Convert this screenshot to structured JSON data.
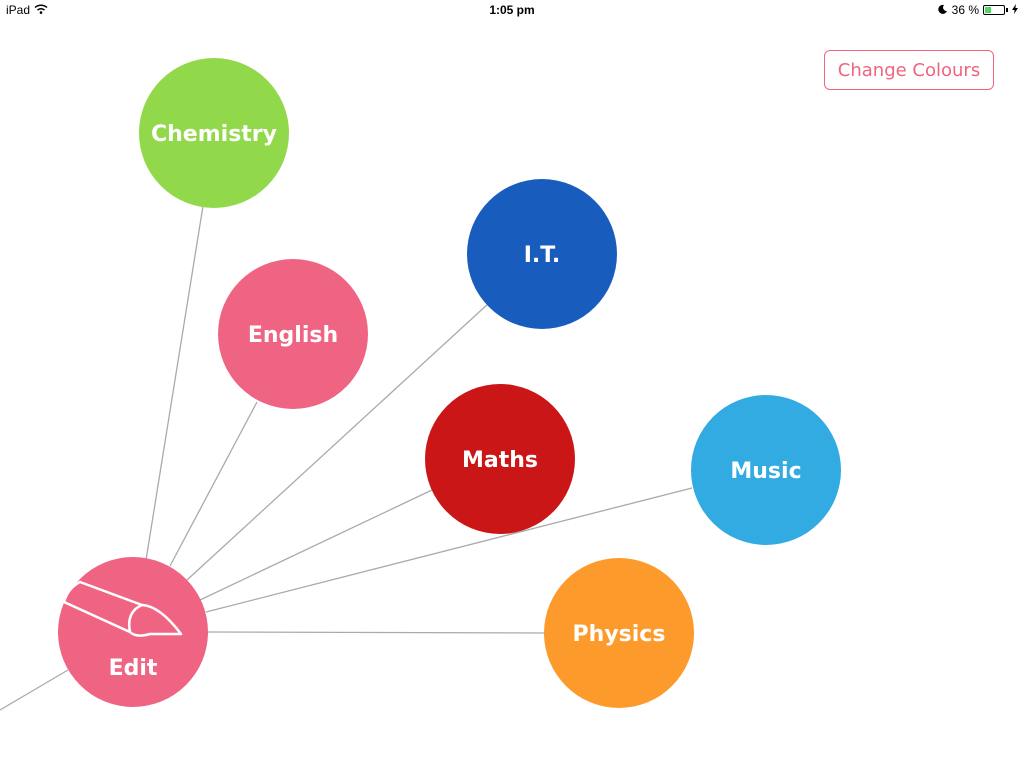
{
  "status_bar": {
    "device": "iPad",
    "time": "1:05 pm",
    "battery": "36 %",
    "battery_level": 0.36,
    "icons": [
      "wifi-icon",
      "moon-icon",
      "battery-icon",
      "charging-bolt-icon"
    ]
  },
  "header": {
    "change_colours_label": "Change Colours",
    "accent_color": "#f0647f"
  },
  "hub": {
    "label": "Edit",
    "icon": "pen-icon",
    "color": "#f06483"
  },
  "subjects": [
    {
      "id": "chemistry",
      "label": "Chemistry",
      "color": "#92d84b"
    },
    {
      "id": "english",
      "label": "English",
      "color": "#f06483"
    },
    {
      "id": "it",
      "label": "I.T.",
      "color": "#185dbd"
    },
    {
      "id": "maths",
      "label": "Maths",
      "color": "#cb1617"
    },
    {
      "id": "music",
      "label": "Music",
      "color": "#32abe2"
    },
    {
      "id": "physics",
      "label": "Physics",
      "color": "#fd9a2c"
    }
  ],
  "line_color": "#aaaaaa"
}
